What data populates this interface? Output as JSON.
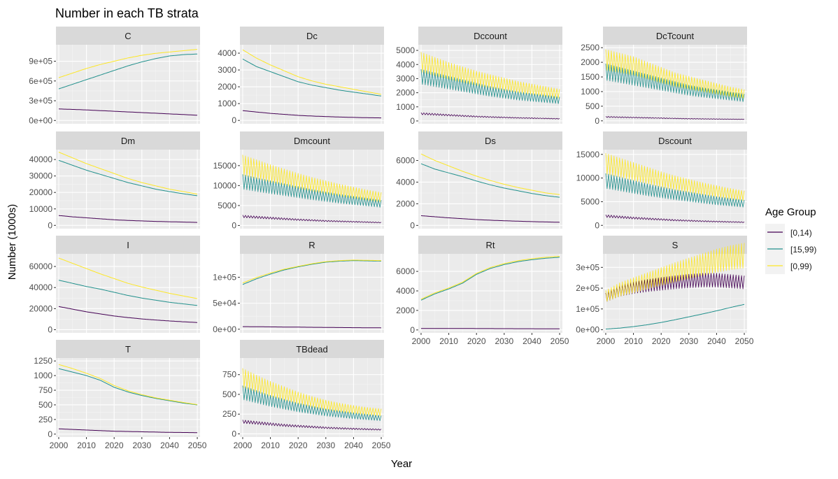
{
  "chart_data": {
    "type": "line",
    "title": "Number in each TB strata",
    "xlabel": "Year",
    "ylabel": "Number (1000s)",
    "legend": {
      "title": "Age Group",
      "placement": "right",
      "entries": [
        "[0,14)",
        "[15,99)",
        "[0,99)"
      ]
    },
    "series_colors": [
      "#440154",
      "#21908C",
      "#FDE725"
    ],
    "x": [
      2000,
      2005,
      2010,
      2015,
      2020,
      2025,
      2030,
      2035,
      2040,
      2045,
      2050
    ],
    "x_ticks": [
      2000,
      2010,
      2020,
      2030,
      2040,
      2050
    ],
    "xlim": [
      1999,
      2051
    ],
    "panels": [
      {
        "name": "C",
        "ylim": [
          -50000,
          1150000
        ],
        "y_ticks": [
          0,
          300000,
          600000,
          900000
        ],
        "y_tick_labels": [
          "0e+00",
          "3e+05",
          "6e+05",
          "9e+05"
        ],
        "series": [
          {
            "values": [
              175000,
              168000,
              160000,
              150000,
              140000,
              130000,
              120000,
              110000,
              100000,
              90000,
              80000
            ]
          },
          {
            "values": [
              480000,
              550000,
              620000,
              690000,
              760000,
              830000,
              890000,
              940000,
              980000,
              1000000,
              1010000
            ]
          },
          {
            "values": [
              650000,
              720000,
              790000,
              850000,
              900000,
              950000,
              990000,
              1020000,
              1040000,
              1060000,
              1080000
            ]
          }
        ]
      },
      {
        "name": "Dc",
        "ylim": [
          -200,
          4500
        ],
        "y_ticks": [
          0,
          1000,
          2000,
          3000,
          4000
        ],
        "y_tick_labels": [
          "0",
          "1000",
          "2000",
          "3000",
          "4000"
        ],
        "series": [
          {
            "values": [
              580,
              500,
              420,
              360,
              300,
              260,
              230,
              200,
              180,
              160,
              150
            ]
          },
          {
            "values": [
              3650,
              3200,
              2900,
              2600,
              2300,
              2100,
              1950,
              1800,
              1680,
              1570,
              1450
            ]
          },
          {
            "values": [
              4200,
              3700,
              3300,
              2950,
              2600,
              2350,
              2150,
              2000,
              1850,
              1700,
              1550
            ]
          }
        ]
      },
      {
        "name": "Dccount",
        "ylim": [
          -200,
          5400
        ],
        "y_ticks": [
          0,
          1000,
          2000,
          3000,
          4000,
          5000
        ],
        "y_tick_labels": [
          "0",
          "1000",
          "2000",
          "3000",
          "4000",
          "5000"
        ],
        "zigzag": [
          true,
          true,
          true
        ],
        "series": [
          {
            "values": [
              500,
              450,
              400,
              350,
              300,
              270,
              240,
              210,
              190,
              170,
              150
            ]
          },
          {
            "values": [
              3000,
              2800,
              2600,
              2400,
              2200,
              2000,
              1850,
              1700,
              1600,
              1500,
              1400
            ]
          },
          {
            "values": [
              4000,
              3700,
              3400,
              3150,
              2900,
              2700,
              2500,
              2300,
              2150,
              2000,
              1850
            ]
          }
        ]
      },
      {
        "name": "DcTcount",
        "ylim": [
          -100,
          2600
        ],
        "y_ticks": [
          0,
          500,
          1000,
          1500,
          2000,
          2500
        ],
        "y_tick_labels": [
          "0",
          "500",
          "1000",
          "1500",
          "2000",
          "2500"
        ],
        "zigzag": [
          true,
          true,
          true
        ],
        "series": [
          {
            "values": [
              130,
              120,
              110,
              100,
              90,
              80,
              70,
              65,
              60,
              55,
              50
            ]
          },
          {
            "values": [
              1600,
              1500,
              1400,
              1300,
              1200,
              1100,
              1000,
              930,
              870,
              810,
              750
            ]
          },
          {
            "values": [
              2000,
              1900,
              1800,
              1650,
              1500,
              1350,
              1250,
              1150,
              1050,
              950,
              880
            ]
          }
        ]
      },
      {
        "name": "Dm",
        "ylim": [
          -2000,
          46000
        ],
        "y_ticks": [
          0,
          10000,
          20000,
          30000,
          40000
        ],
        "y_tick_labels": [
          "0",
          "10000",
          "20000",
          "30000",
          "40000"
        ],
        "series": [
          {
            "values": [
              6000,
              5200,
              4600,
              4000,
              3400,
              3000,
              2700,
              2400,
              2200,
              2000,
              1800
            ]
          },
          {
            "values": [
              39500,
              36500,
              33500,
              31000,
              28500,
              26000,
              24000,
              22000,
              20500,
              19200,
              18000
            ]
          },
          {
            "values": [
              44500,
              41000,
              37500,
              34500,
              31500,
              28500,
              26000,
              24000,
              22000,
              20500,
              19000
            ]
          }
        ]
      },
      {
        "name": "Dmcount",
        "ylim": [
          -800,
          19000
        ],
        "y_ticks": [
          0,
          5000,
          10000,
          15000
        ],
        "y_tick_labels": [
          "0",
          "5000",
          "10000",
          "15000"
        ],
        "zigzag": [
          true,
          true,
          true
        ],
        "series": [
          {
            "values": [
              2200,
              2000,
              1800,
              1600,
              1400,
              1250,
              1100,
              1000,
              900,
              800,
              700
            ]
          },
          {
            "values": [
              10500,
              9800,
              9200,
              8600,
              8000,
              7400,
              6900,
              6400,
              6000,
              5600,
              5200
            ]
          },
          {
            "values": [
              14500,
              13500,
              12500,
              11600,
              10700,
              9900,
              9200,
              8500,
              7900,
              7300,
              6800
            ]
          }
        ]
      },
      {
        "name": "Ds",
        "ylim": [
          -300,
          7000
        ],
        "y_ticks": [
          0,
          2000,
          4000,
          6000
        ],
        "y_tick_labels": [
          "0",
          "2000",
          "4000",
          "6000"
        ],
        "series": [
          {
            "values": [
              900,
              800,
              700,
              620,
              540,
              480,
              430,
              390,
              350,
              320,
              290
            ]
          },
          {
            "values": [
              5700,
              5200,
              4850,
              4500,
              4100,
              3750,
              3450,
              3200,
              2950,
              2750,
              2600
            ]
          },
          {
            "values": [
              6600,
              6000,
              5500,
              5000,
              4550,
              4150,
              3800,
              3500,
              3250,
              3000,
              2850
            ]
          }
        ]
      },
      {
        "name": "Dscount",
        "ylim": [
          -700,
          16000
        ],
        "y_ticks": [
          0,
          5000,
          10000,
          15000
        ],
        "y_tick_labels": [
          "0",
          "5000",
          "10000",
          "15000"
        ],
        "zigzag": [
          true,
          true,
          true
        ],
        "series": [
          {
            "values": [
              1900,
              1700,
              1500,
              1350,
              1200,
              1050,
              950,
              850,
              770,
              700,
              640
            ]
          },
          {
            "values": [
              9000,
              8400,
              7800,
              7200,
              6700,
              6200,
              5800,
              5400,
              5000,
              4700,
              4400
            ]
          },
          {
            "values": [
              12500,
              11700,
              10900,
              10100,
              9300,
              8600,
              8000,
              7400,
              6900,
              6400,
              6000
            ]
          }
        ]
      },
      {
        "name": "I",
        "ylim": [
          -3000,
          72000
        ],
        "y_ticks": [
          0,
          20000,
          40000,
          60000
        ],
        "y_tick_labels": [
          "0",
          "20000",
          "40000",
          "60000"
        ],
        "series": [
          {
            "values": [
              22000,
              19500,
              17000,
              15000,
              13000,
              11500,
              10200,
              9200,
              8300,
              7500,
              6800
            ]
          },
          {
            "values": [
              47000,
              44000,
              41000,
              38500,
              35500,
              32500,
              30000,
              28000,
              26000,
              24500,
              23000
            ]
          },
          {
            "values": [
              68000,
              63000,
              58000,
              53000,
              48500,
              44000,
              40500,
              37500,
              34500,
              32000,
              29500
            ]
          }
        ]
      },
      {
        "name": "R",
        "ylim": [
          -7000,
          145000
        ],
        "y_ticks": [
          0,
          50000,
          100000
        ],
        "y_tick_labels": [
          "0e+00",
          "5e+04",
          "1e+05"
        ],
        "series": [
          {
            "values": [
              5000,
              4800,
              4500,
              4200,
              4000,
              3700,
              3500,
              3200,
              3000,
              2800,
              2600
            ]
          },
          {
            "values": [
              86000,
              97000,
              106000,
              114000,
              120000,
              125000,
              129000,
              131000,
              132000,
              131500,
              131000
            ]
          },
          {
            "values": [
              89000,
              99500,
              108000,
              115500,
              121000,
              126000,
              130000,
              132000,
              133000,
              132500,
              132000
            ]
          }
        ]
      },
      {
        "name": "Rt",
        "ylim": [
          -300,
          7800
        ],
        "y_ticks": [
          0,
          2000,
          4000,
          6000
        ],
        "y_tick_labels": [
          "0",
          "2000",
          "4000",
          "6000"
        ],
        "series": [
          {
            "values": [
              150,
              150,
              150,
              145,
              140,
              135,
              130,
              125,
              120,
              115,
              110
            ]
          },
          {
            "values": [
              3050,
              3700,
              4200,
              4800,
              5700,
              6300,
              6700,
              7000,
              7200,
              7350,
              7450
            ]
          },
          {
            "values": [
              3150,
              3800,
              4300,
              4900,
              5800,
              6400,
              6800,
              7100,
              7300,
              7450,
              7550
            ]
          }
        ]
      },
      {
        "name": "S",
        "ylim": [
          -15000,
          365000
        ],
        "y_ticks": [
          0,
          100000,
          200000,
          300000
        ],
        "y_tick_labels": [
          "0e+00",
          "1e+05",
          "2e+05",
          "3e+05"
        ],
        "zigzag": [
          true,
          false,
          true
        ],
        "series": [
          {
            "values": [
              150000,
              180000,
              195000,
              205000,
              213000,
              220000,
              226000,
              230000,
              230000,
              225000,
              220000
            ]
          },
          {
            "values": [
              3000,
              8000,
              15000,
              24000,
              35000,
              48000,
              62000,
              76000,
              91000,
              107000,
              122000
            ]
          },
          {
            "values": [
              155000,
              185000,
              205000,
              225000,
              245000,
              265000,
              283000,
              300000,
              318000,
              332000,
              342000
            ]
          }
        ]
      },
      {
        "name": "T",
        "ylim": [
          -50,
          1300
        ],
        "y_ticks": [
          0,
          250,
          500,
          750,
          1000,
          1250
        ],
        "y_tick_labels": [
          "0",
          "250",
          "500",
          "750",
          "1000",
          "1250"
        ],
        "series": [
          {
            "values": [
              90,
              80,
              70,
              60,
              50,
              45,
              40,
              35,
              30,
              28,
              25
            ]
          },
          {
            "values": [
              1120,
              1060,
              1000,
              920,
              800,
              720,
              660,
              610,
              570,
              530,
              500
            ]
          },
          {
            "values": [
              1190,
              1120,
              1040,
              950,
              830,
              740,
              675,
              620,
              580,
              540,
              505
            ]
          }
        ]
      },
      {
        "name": "TBdead",
        "ylim": [
          -40,
          960
        ],
        "y_ticks": [
          0,
          250,
          500,
          750
        ],
        "y_tick_labels": [
          "0",
          "250",
          "500",
          "750"
        ],
        "zigzag": [
          true,
          true,
          true
        ],
        "series": [
          {
            "values": [
              150,
              135,
              120,
              105,
              95,
              85,
              75,
              68,
              62,
              57,
              52
            ]
          },
          {
            "values": [
              500,
              450,
              400,
              360,
              320,
              290,
              260,
              240,
              220,
              205,
              190
            ]
          },
          {
            "values": [
              680,
              610,
              545,
              490,
              435,
              390,
              350,
              320,
              295,
              275,
              260
            ]
          }
        ]
      }
    ]
  }
}
